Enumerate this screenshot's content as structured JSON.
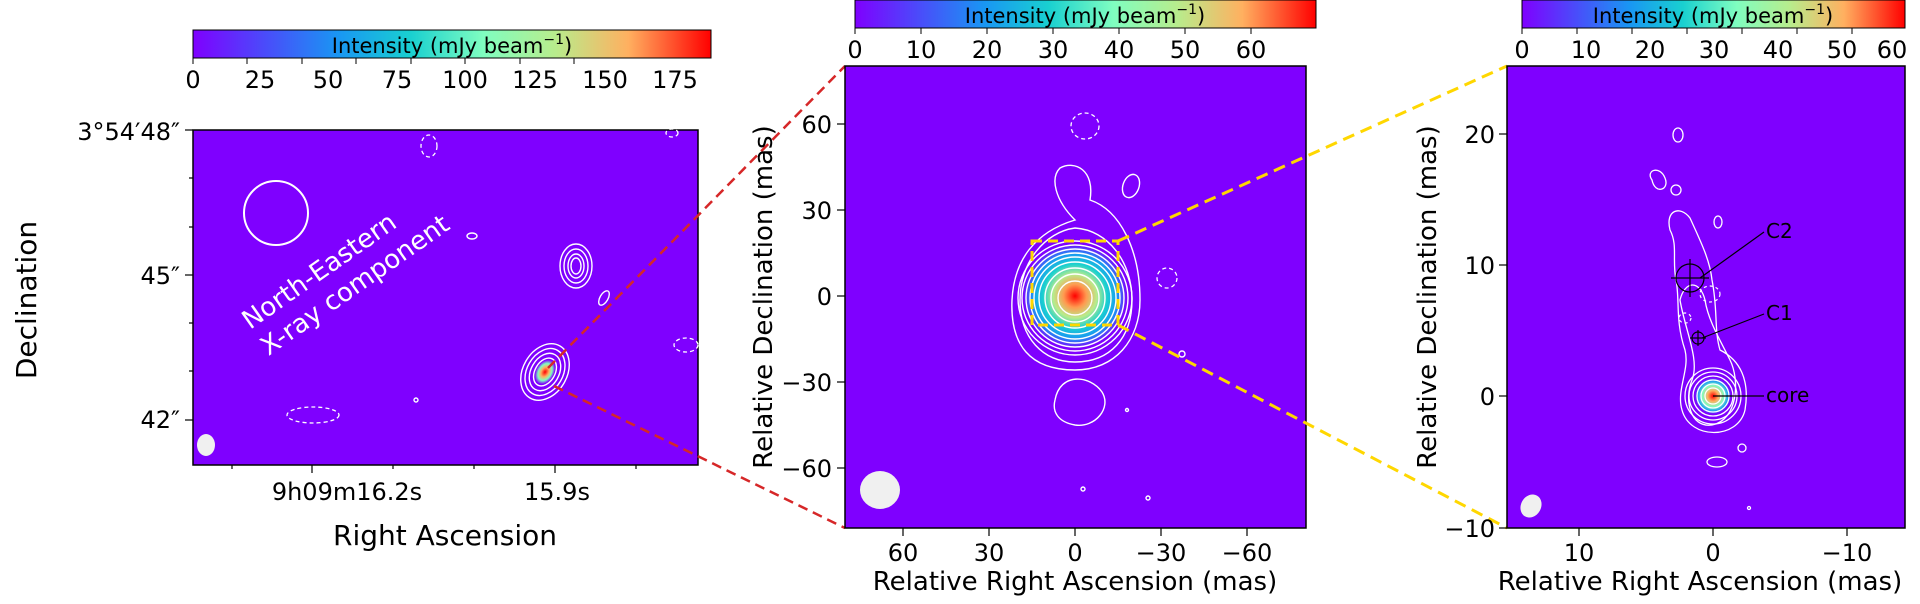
{
  "colorbar_label": "Intensity (mJy beam",
  "colorbar_label_exp": "−1",
  "colorbar_label_close": ")",
  "panel_left": {
    "colorbar_ticks": [
      "0",
      "25",
      "50",
      "75",
      "100",
      "125",
      "150",
      "175"
    ],
    "y_ticks": [
      "3°54′48″",
      "45″",
      "42″"
    ],
    "x_ticks": [
      "9h09m16.2s",
      "15.9s"
    ],
    "xlabel": "Right Ascension",
    "ylabel": "Declination",
    "annotation_line1": "North-Eastern",
    "annotation_line2": "X-ray component"
  },
  "panel_middle": {
    "colorbar_ticks": [
      "0",
      "10",
      "20",
      "30",
      "40",
      "50",
      "60"
    ],
    "y_ticks": [
      "60",
      "30",
      "0",
      "−30",
      "−60"
    ],
    "x_ticks": [
      "60",
      "30",
      "0",
      "−30",
      "−60"
    ],
    "xlabel": "Relative Right Ascension (mas)",
    "ylabel": "Relative Declination (mas)"
  },
  "panel_right": {
    "colorbar_ticks": [
      "0",
      "10",
      "20",
      "30",
      "40",
      "50",
      "60"
    ],
    "y_ticks": [
      "20",
      "10",
      "0",
      "−10"
    ],
    "x_ticks": [
      "10",
      "0",
      "−10"
    ],
    "xlabel": "Relative Right Ascension (mas)",
    "ylabel": "Relative Declination (mas)",
    "component_labels": [
      "C2",
      "C1",
      "core"
    ]
  },
  "colors": {
    "background": "#7f00ff",
    "contour": "#ffffff",
    "zoom_left": "#d62728",
    "zoom_right": "#ffd700"
  }
}
